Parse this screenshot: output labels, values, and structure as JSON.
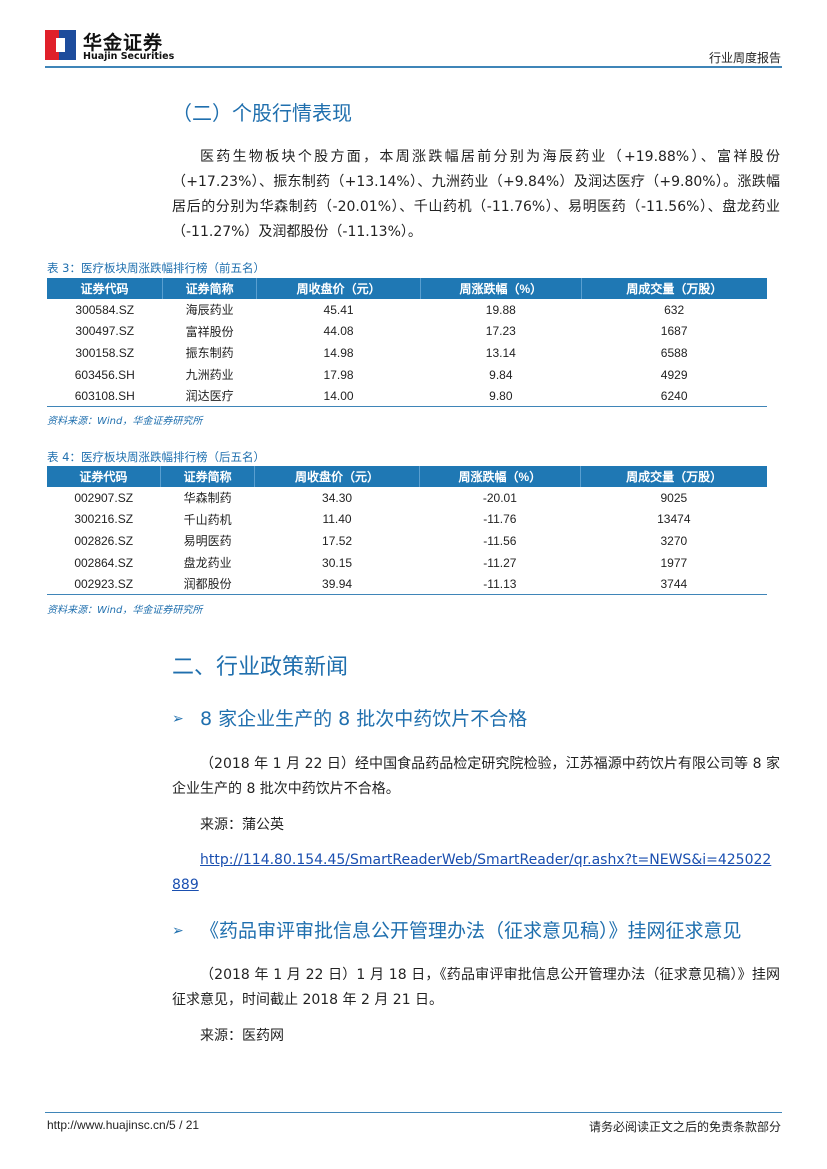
{
  "header": {
    "logo_cn": "华金证券",
    "logo_en": "Huajin Securities",
    "report_type": "行业周度报告",
    "accent": "#1f78b4"
  },
  "section1": {
    "title": "（二）个股行情表现",
    "paragraph": "医药生物板块个股方面，本周涨跌幅居前分别为海辰药业（+19.88%）、富祥股份（+17.23%）、振东制药（+13.14%）、九洲药业（+9.84%）及润达医疗（+9.80%）。涨跌幅居后的分别为华森制药（-20.01%）、千山药机（-11.76%）、易明医药（-11.56%）、盘龙药业（-11.27%）及润都股份（-11.13%）。"
  },
  "table3": {
    "caption": "表 3：医疗板块周涨跌幅排行榜（前五名）",
    "headers": [
      "证券代码",
      "证券简称",
      "周收盘价（元）",
      "周涨跌幅（%）",
      "周成交量（万股）"
    ],
    "rows": [
      [
        "300584.SZ",
        "海辰药业",
        "45.41",
        "19.88",
        "632"
      ],
      [
        "300497.SZ",
        "富祥股份",
        "44.08",
        "17.23",
        "1687"
      ],
      [
        "300158.SZ",
        "振东制药",
        "14.98",
        "13.14",
        "6588"
      ],
      [
        "603456.SH",
        "九洲药业",
        "17.98",
        "9.84",
        "4929"
      ],
      [
        "603108.SH",
        "润达医疗",
        "14.00",
        "9.80",
        "6240"
      ]
    ],
    "source": "资料来源：Wind，华金证券研究所"
  },
  "table4": {
    "caption": "表 4：医疗板块周涨跌幅排行榜（后五名）",
    "headers": [
      "证券代码",
      "证券简称",
      "周收盘价（元）",
      "周涨跌幅（%）",
      "周成交量（万股）"
    ],
    "rows": [
      [
        "002907.SZ",
        "华森制药",
        "34.30",
        "-20.01",
        "9025"
      ],
      [
        "300216.SZ",
        "千山药机",
        "11.40",
        "-11.76",
        "13474"
      ],
      [
        "002826.SZ",
        "易明医药",
        "17.52",
        "-11.56",
        "3270"
      ],
      [
        "002864.SZ",
        "盘龙药业",
        "30.15",
        "-11.27",
        "1977"
      ],
      [
        "002923.SZ",
        "润都股份",
        "39.94",
        "-11.13",
        "3744"
      ]
    ],
    "source": "资料来源：Wind，华金证券研究所"
  },
  "section2": {
    "title": "二、行业政策新闻",
    "news": [
      {
        "bullet": "➢",
        "title": "8 家企业生产的 8 批次中药饮片不合格",
        "body": "（2018 年 1 月 22 日）经中国食品药品检定研究院检验，江苏福源中药饮片有限公司等 8 家企业生产的 8 批次中药饮片不合格。",
        "source": "来源：蒲公英",
        "link": "http://114.80.154.45/SmartReaderWeb/SmartReader/qr.ashx?t=NEWS&i=425022889"
      },
      {
        "bullet": "➢",
        "title": "《药品审评审批信息公开管理办法（征求意见稿）》挂网征求意见",
        "body": "（2018 年 1 月 22 日）1 月 18 日，《药品审评审批信息公开管理办法（征求意见稿）》挂网征求意见，时间截止 2018 年 2 月 21 日。",
        "source": "来源：医药网"
      }
    ]
  },
  "footer": {
    "url": "http://www.huajinsc.cn/5 / 21",
    "note": "请务必阅读正文之后的免责条款部分"
  }
}
